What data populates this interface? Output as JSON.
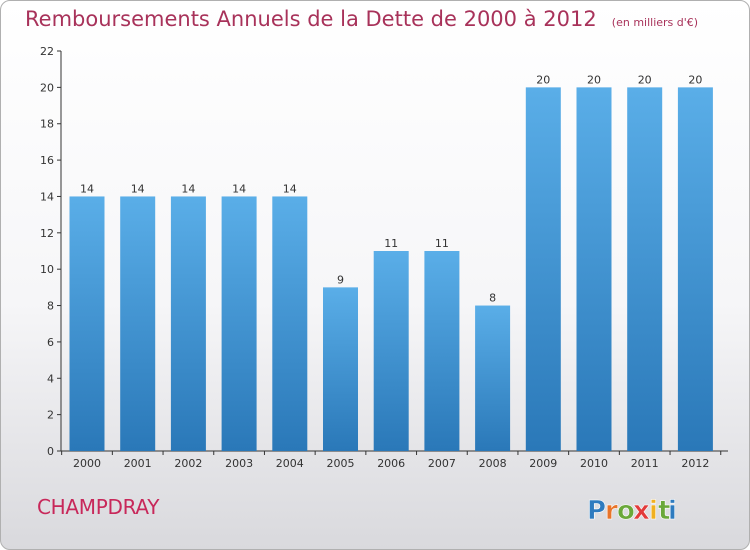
{
  "chart_data": {
    "type": "bar",
    "title": "Remboursements Annuels de la Dette de 2000 à 2012",
    "unit": "(en milliers d'€)",
    "categories": [
      "2000",
      "2001",
      "2002",
      "2003",
      "2004",
      "2005",
      "2006",
      "2007",
      "2008",
      "2009",
      "2010",
      "2011",
      "2012"
    ],
    "values": [
      14,
      14,
      14,
      14,
      14,
      9,
      11,
      11,
      8,
      20,
      20,
      20,
      20
    ],
    "ylim": [
      0,
      22
    ],
    "yticks": [
      0,
      2,
      4,
      6,
      8,
      10,
      12,
      14,
      16,
      18,
      20,
      22
    ],
    "grid": false,
    "legend": "none",
    "bar_color": "#3a8fd0"
  },
  "commune": "CHAMPDRAY",
  "logo": {
    "letters": [
      "P",
      "r",
      "o",
      "x",
      "i",
      "t",
      "i"
    ],
    "colors": [
      "#2e7bbf",
      "#e8742a",
      "#6aa83a",
      "#e23b3b",
      "#f0b020",
      "#6aa83a",
      "#2e7bbf"
    ]
  }
}
